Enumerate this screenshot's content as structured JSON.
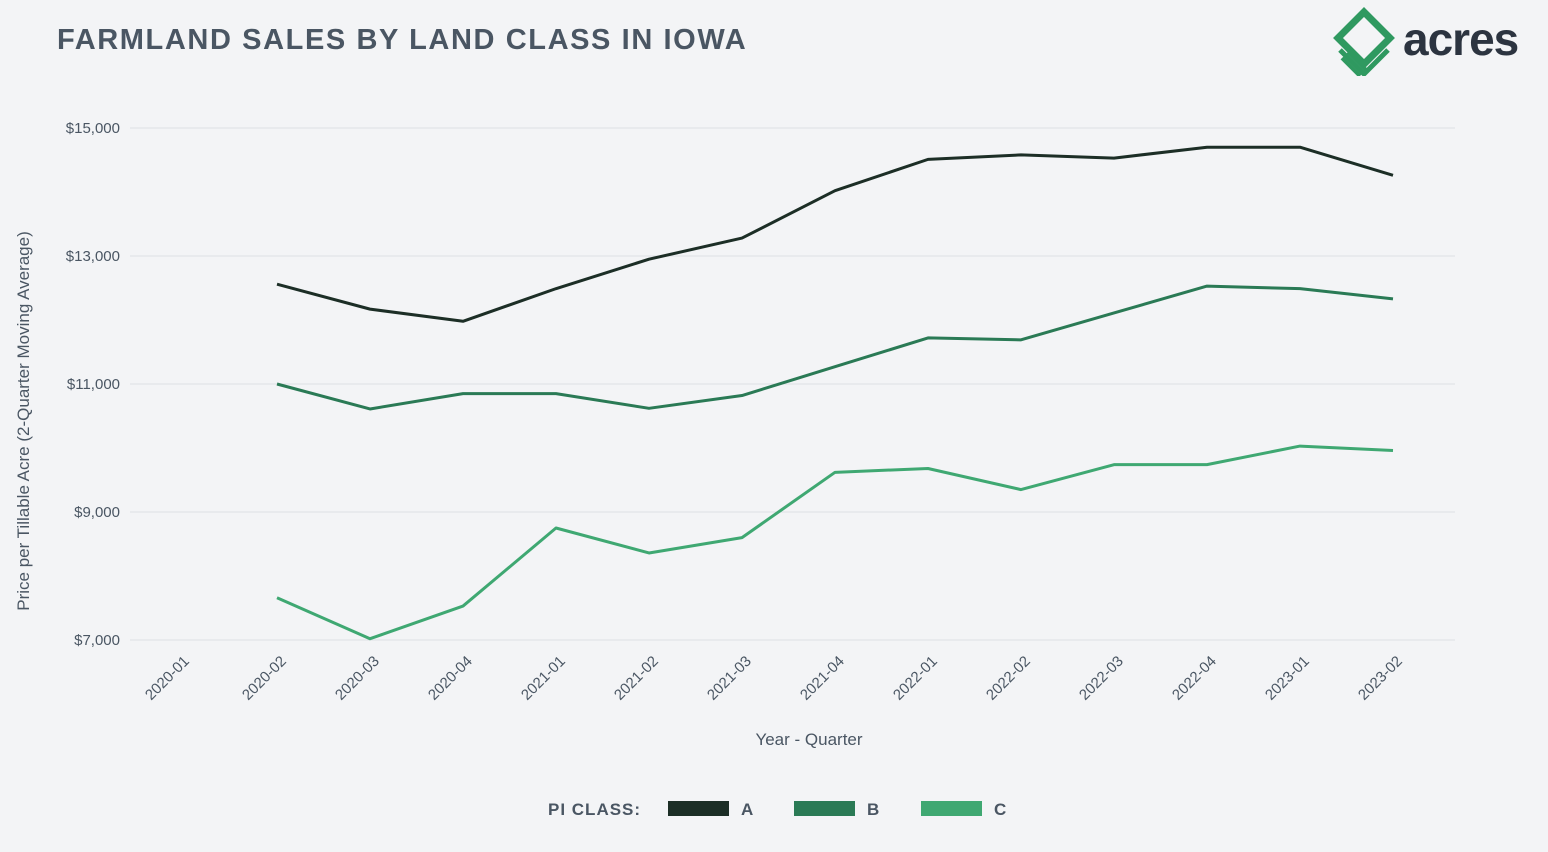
{
  "title": "FARMLAND SALES BY LAND CLASS IN IOWA",
  "logo": {
    "text": "acres",
    "icon": "acres-diamond-logo",
    "color": "#2f9960"
  },
  "chart_data": {
    "type": "line",
    "categories": [
      "2020-01",
      "2020-02",
      "2020-03",
      "2020-04",
      "2021-01",
      "2021-02",
      "2021-03",
      "2021-04",
      "2022-01",
      "2022-02",
      "2022-03",
      "2022-04",
      "2023-01",
      "2023-02"
    ],
    "ylabel": "Price per Tillable Acre (2-Quarter Moving Average)",
    "xlabel": "Year - Quarter",
    "ylim": [
      7000,
      15000
    ],
    "yticks": [
      7000,
      9000,
      11000,
      13000,
      15000
    ],
    "ytick_labels": [
      "$7,000",
      "$9,000",
      "$11,000",
      "$13,000",
      "$15,000"
    ],
    "grid": true,
    "legend": {
      "title": "PI CLASS:",
      "placement": "bottom-center"
    },
    "series": [
      {
        "name": "A",
        "color": "#1c2e26",
        "values": [
          null,
          12560,
          12170,
          11980,
          12490,
          12950,
          13280,
          14020,
          14510,
          14580,
          14530,
          14700,
          14700,
          14260
        ]
      },
      {
        "name": "B",
        "color": "#2a7a55",
        "values": [
          null,
          11000,
          10610,
          10850,
          10850,
          10620,
          10820,
          11270,
          11720,
          11690,
          12110,
          12530,
          12490,
          12330
        ]
      },
      {
        "name": "C",
        "color": "#3fa872",
        "values": [
          null,
          7660,
          7020,
          7530,
          8750,
          8360,
          8600,
          9620,
          9680,
          9350,
          9740,
          9740,
          10030,
          9960
        ]
      }
    ]
  }
}
